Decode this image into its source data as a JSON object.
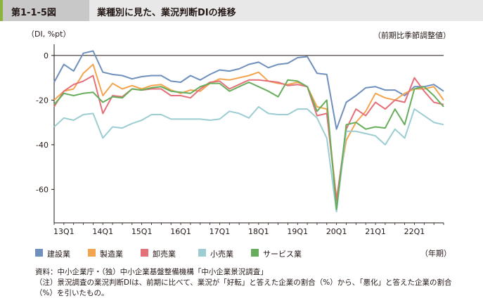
{
  "figure": {
    "number": "第1-1-5図",
    "title": "業種別に見た、業況判断DIの推移",
    "unit_label": "（DI, %pt）",
    "adjustment_note": "（前期比季節調整値）",
    "x_unit": "（年期）",
    "source": "資料：中小企業庁・（独）中小企業基盤整備機構「中小企業景況調査」",
    "note_line1": "（注）景況調査の業況判断DIは、前期に比べて、業況が「好転」と答えた企業の割合（%）から、「悪化」と答えた企業の割合",
    "note_line2": "（%）を引いたもの。"
  },
  "chart_data": {
    "type": "line",
    "xlabel": "",
    "ylabel": "（DI, %pt）",
    "ylim": [
      -75,
      5
    ],
    "yticks": [
      0,
      -20,
      -40,
      -60
    ],
    "grid": false,
    "legend_position": "bottom",
    "x_tick_labels": [
      {
        "label": "13Q1",
        "index": 0
      },
      {
        "label": "14Q1",
        "index": 4
      },
      {
        "label": "15Q1",
        "index": 8
      },
      {
        "label": "16Q1",
        "index": 12
      },
      {
        "label": "17Q1",
        "index": 16
      },
      {
        "label": "18Q1",
        "index": 20
      },
      {
        "label": "19Q1",
        "index": 24
      },
      {
        "label": "20Q1",
        "index": 28
      },
      {
        "label": "21Q1",
        "index": 32
      },
      {
        "label": "22Q1",
        "index": 36
      }
    ],
    "x": [
      "2012Q4",
      "2013Q1",
      "2013Q2",
      "2013Q3",
      "2013Q4",
      "2014Q1",
      "2014Q2",
      "2014Q3",
      "2014Q4",
      "2015Q1",
      "2015Q2",
      "2015Q3",
      "2015Q4",
      "2016Q1",
      "2016Q2",
      "2016Q3",
      "2016Q4",
      "2017Q1",
      "2017Q2",
      "2017Q3",
      "2017Q4",
      "2018Q1",
      "2018Q2",
      "2018Q3",
      "2018Q4",
      "2019Q1",
      "2019Q2",
      "2019Q3",
      "2019Q4",
      "2020Q1",
      "2020Q2",
      "2020Q3",
      "2020Q4",
      "2021Q1",
      "2021Q2",
      "2021Q3",
      "2021Q4",
      "2022Q1",
      "2022Q2",
      "2022Q3",
      "2022Q4"
    ],
    "series": [
      {
        "name": "建設業",
        "color": "#6f8fbd",
        "values": [
          -12,
          -4,
          -7,
          1,
          2,
          -7.5,
          -8.5,
          -9,
          -10.5,
          -9.5,
          -9,
          -9,
          -11.5,
          -12,
          -9,
          -11,
          -8.5,
          -6.5,
          -7,
          -6,
          -4,
          -3,
          -5.5,
          -4,
          -3.5,
          -1,
          -0.5,
          -8,
          -8.5,
          -33,
          -21,
          -18,
          -14.5,
          -14,
          -15.5,
          -15.5,
          -18,
          -14,
          -14,
          -13,
          -16
        ]
      },
      {
        "name": "製造業",
        "color": "#f3a44f",
        "values": [
          -20,
          -16,
          -15,
          -8,
          -4,
          -18,
          -12.5,
          -15,
          -13.5,
          -15,
          -13.5,
          -13,
          -15.5,
          -17,
          -15.5,
          -16,
          -12.5,
          -10.5,
          -11,
          -10,
          -9,
          -7.5,
          -11.5,
          -12.5,
          -13,
          -12,
          -14,
          -23,
          -24,
          -64,
          -38,
          -30,
          -25,
          -17,
          -19,
          -20,
          -17,
          -15,
          -15,
          -14,
          -20
        ]
      },
      {
        "name": "卸売業",
        "color": "#e4707a",
        "values": [
          -23,
          -16,
          -13,
          -11.5,
          -9,
          -26,
          -18,
          -18.5,
          -15,
          -15.5,
          -15,
          -15,
          -18,
          -18,
          -19,
          -15,
          -12,
          -11.5,
          -15,
          -13,
          -11,
          -11,
          -11.5,
          -12,
          -13.5,
          -13,
          -14,
          -27,
          -26,
          -65,
          -33,
          -24,
          -27,
          -21,
          -24,
          -20,
          -21,
          -10,
          -16,
          -21,
          -22
        ]
      },
      {
        "name": "小売業",
        "color": "#9bcdd2",
        "values": [
          -32,
          -28,
          -29,
          -26.5,
          -26,
          -37,
          -32,
          -32.5,
          -30.5,
          -29,
          -26.5,
          -26.5,
          -28.5,
          -28.5,
          -28.5,
          -28.5,
          -29,
          -28.5,
          -25,
          -26,
          -28,
          -23,
          -26,
          -26.5,
          -26.5,
          -24,
          -24,
          -28,
          -37,
          -70,
          -34,
          -34,
          -35,
          -36,
          -40,
          -33,
          -37,
          -24,
          -27,
          -30,
          -31
        ]
      },
      {
        "name": "サービス業",
        "color": "#67ad5b",
        "values": [
          -22,
          -17,
          -18,
          -17,
          -16.5,
          -21,
          -18.5,
          -19,
          -15,
          -15.5,
          -14.5,
          -14,
          -16,
          -16.5,
          -17,
          -14,
          -12.5,
          -12.5,
          -16,
          -14,
          -12,
          -14,
          -16,
          -18.5,
          -11,
          -11.5,
          -14,
          -25,
          -20,
          -69,
          -31,
          -30,
          -33,
          -32,
          -32.5,
          -24,
          -31,
          -15,
          -14,
          -18,
          -23
        ]
      }
    ]
  }
}
